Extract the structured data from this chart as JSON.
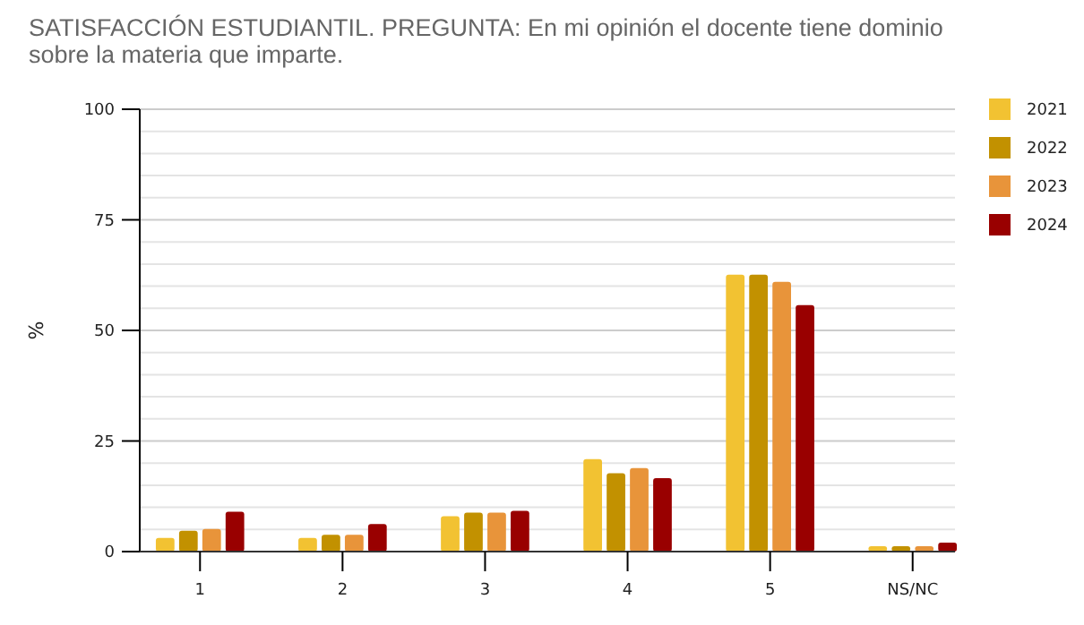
{
  "chart_data": {
    "type": "bar",
    "title": "SATISFACCIÓN ESTUDIANTIL. PREGUNTA: En mi opinión el docente tiene dominio sobre la materia que imparte.",
    "ylabel": "%",
    "categories": [
      "1",
      "2",
      "3",
      "4",
      "5",
      "NS/NC"
    ],
    "series": [
      {
        "name": "2021",
        "color": "#f2c232",
        "values": [
          3.1,
          3.1,
          8.0,
          20.9,
          62.6,
          1.2
        ]
      },
      {
        "name": "2022",
        "color": "#c29100",
        "values": [
          4.7,
          3.8,
          8.8,
          17.7,
          62.6,
          1.2
        ]
      },
      {
        "name": "2023",
        "color": "#e8943a",
        "values": [
          5.1,
          3.8,
          8.8,
          18.9,
          61.0,
          1.2
        ]
      },
      {
        "name": "2024",
        "color": "#990000",
        "values": [
          9.0,
          6.2,
          9.2,
          16.6,
          55.7,
          2.0
        ]
      }
    ],
    "ylim": [
      0,
      100
    ],
    "yticks": [
      0,
      {
        "value": 5,
        "label": null
      },
      {
        "value": 10,
        "label": null
      },
      {
        "value": 15,
        "label": null
      },
      {
        "value": 20,
        "label": null
      },
      25,
      {
        "value": 30,
        "label": null
      },
      {
        "value": 35,
        "label": null
      },
      {
        "value": 40,
        "label": null
      },
      {
        "value": 45,
        "label": null
      },
      50,
      {
        "value": 55,
        "label": null
      },
      {
        "value": 60,
        "label": null
      },
      {
        "value": 65,
        "label": null
      },
      {
        "value": 70,
        "label": null
      },
      75,
      {
        "value": 80,
        "label": null
      },
      {
        "value": 85,
        "label": null
      },
      {
        "value": 90,
        "label": null
      },
      {
        "value": 95,
        "label": null
      },
      100
    ],
    "grid": "y",
    "legend": "right"
  }
}
